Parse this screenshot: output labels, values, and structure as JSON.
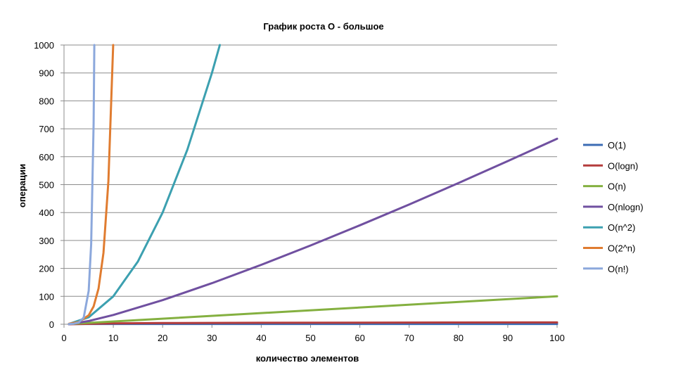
{
  "chart_data": {
    "type": "line",
    "title": "График роста О - большое",
    "xlabel": "количество элементов",
    "ylabel": "операции",
    "xlim": [
      0,
      100
    ],
    "ylim": [
      0,
      1000
    ],
    "x_ticks": [
      "0",
      "10",
      "20",
      "30",
      "40",
      "50",
      "60",
      "70",
      "80",
      "90",
      "100"
    ],
    "y_ticks": [
      "0",
      "100",
      "200",
      "300",
      "400",
      "500",
      "600",
      "700",
      "800",
      "900",
      "1000"
    ],
    "grid": "horizontal",
    "legend_position": "right",
    "series": [
      {
        "name": "O(1)",
        "color": "#3c6cb4",
        "points": [
          [
            1,
            1
          ],
          [
            100,
            1
          ]
        ]
      },
      {
        "name": "O(logn)",
        "color": "#b43c3c",
        "points": [
          [
            1,
            0
          ],
          [
            10,
            3.3
          ],
          [
            20,
            4.3
          ],
          [
            40,
            5.3
          ],
          [
            60,
            5.9
          ],
          [
            80,
            6.3
          ],
          [
            100,
            6.6
          ]
        ]
      },
      {
        "name": "O(n)",
        "color": "#84b040",
        "points": [
          [
            1,
            1
          ],
          [
            100,
            100
          ]
        ]
      },
      {
        "name": "O(nlogn)",
        "color": "#7050a0",
        "points": [
          [
            1,
            0
          ],
          [
            5,
            11.6
          ],
          [
            10,
            33.2
          ],
          [
            20,
            86.4
          ],
          [
            30,
            147.2
          ],
          [
            40,
            212.9
          ],
          [
            50,
            282.2
          ],
          [
            60,
            354.4
          ],
          [
            70,
            429
          ],
          [
            80,
            505.8
          ],
          [
            90,
            584.3
          ],
          [
            100,
            664.4
          ]
        ]
      },
      {
        "name": "O(n^2)",
        "color": "#3ca0b0",
        "points": [
          [
            1,
            1
          ],
          [
            5,
            25
          ],
          [
            10,
            100
          ],
          [
            15,
            225
          ],
          [
            20,
            400
          ],
          [
            25,
            625
          ],
          [
            30,
            900
          ],
          [
            31.6,
            1000
          ]
        ]
      },
      {
        "name": "O(2^n)",
        "color": "#e07c30",
        "points": [
          [
            1,
            2
          ],
          [
            3,
            8
          ],
          [
            5,
            32
          ],
          [
            6,
            64
          ],
          [
            7,
            128
          ],
          [
            8,
            256
          ],
          [
            9,
            512
          ],
          [
            9.97,
            1000
          ]
        ]
      },
      {
        "name": "O(n!)",
        "color": "#8ca8dc",
        "points": [
          [
            1,
            1
          ],
          [
            2,
            2
          ],
          [
            3,
            6
          ],
          [
            4,
            24
          ],
          [
            5,
            120
          ],
          [
            5.5,
            287
          ],
          [
            6,
            720
          ],
          [
            6.15,
            1000
          ]
        ]
      }
    ]
  }
}
